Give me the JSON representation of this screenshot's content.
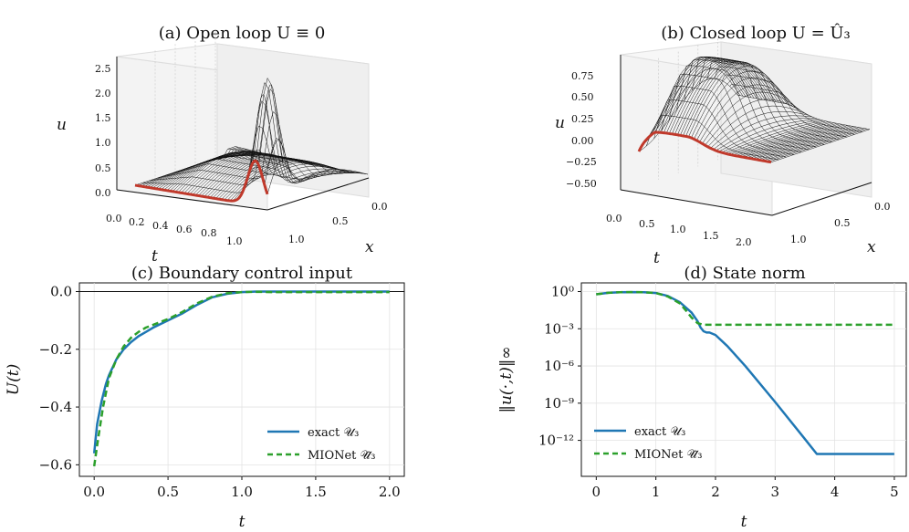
{
  "colors": {
    "exact": "#1f77b4",
    "mionet": "#2ca02c",
    "red_curve": "#c0392b",
    "mesh": "#111111"
  },
  "chart_data": [
    {
      "type": "surface",
      "title": "(a) Open loop  U ≡ 0",
      "xlabel": "t",
      "ylabel": "x",
      "zlabel": "u",
      "t_ticks": [
        "0.0",
        "0.2",
        "0.4",
        "0.6",
        "0.8",
        "1.0"
      ],
      "x_ticks": [
        "0.0",
        "0.5",
        "1.0"
      ],
      "z_ticks": [
        "0.0",
        "0.5",
        "1.0",
        "1.5",
        "2.0",
        "2.5"
      ],
      "tlim": [
        0,
        1.1
      ],
      "xlim": [
        0,
        1
      ],
      "zlim": [
        0,
        2.6
      ],
      "peak": {
        "t": 1.0,
        "x": 0.1,
        "u": 2.5
      }
    },
    {
      "type": "surface",
      "title": "(b) Closed loop  U = Û₃",
      "xlabel": "t",
      "ylabel": "x",
      "zlabel": "u",
      "t_ticks": [
        "0.0",
        "0.5",
        "1.0",
        "1.5",
        "2.0"
      ],
      "x_ticks": [
        "0.0",
        "0.5",
        "1.0"
      ],
      "z_ticks": [
        "−0.50",
        "−0.25",
        "0.00",
        "0.25",
        "0.50",
        "0.75"
      ],
      "tlim": [
        0,
        2.1
      ],
      "xlim": [
        0,
        1
      ],
      "zlim": [
        -0.55,
        0.85
      ]
    },
    {
      "type": "line",
      "title": "(c) Boundary control input",
      "xlabel": "t",
      "ylabel": "U(t)",
      "xlim": [
        -0.1,
        2.1
      ],
      "ylim": [
        -0.64,
        0.03
      ],
      "x_ticks": [
        0.0,
        0.5,
        1.0,
        1.5,
        2.0
      ],
      "x_tick_labels": [
        "0.0",
        "0.5",
        "1.0",
        "1.5",
        "2.0"
      ],
      "y_ticks": [
        0.0,
        -0.2,
        -0.4,
        -0.6
      ],
      "y_tick_labels": [
        "0.0",
        "−0.2",
        "−0.4",
        "−0.6"
      ],
      "grid": true,
      "legend": "lower-right",
      "series": [
        {
          "name": "exact 𝒰₃",
          "style": "solid",
          "x": [
            0.0,
            0.02,
            0.05,
            0.08,
            0.1,
            0.15,
            0.2,
            0.25,
            0.3,
            0.35,
            0.4,
            0.5,
            0.6,
            0.7,
            0.8,
            0.9,
            1.0,
            1.1,
            1.2,
            1.4,
            1.6,
            1.8,
            2.0
          ],
          "y": [
            -0.56,
            -0.46,
            -0.38,
            -0.32,
            -0.29,
            -0.235,
            -0.2,
            -0.175,
            -0.155,
            -0.14,
            -0.125,
            -0.1,
            -0.075,
            -0.045,
            -0.02,
            -0.008,
            -0.002,
            0.0,
            0.0,
            0.0,
            0.0,
            0.0,
            0.0
          ]
        },
        {
          "name": "MIONet 𝒰̂₃",
          "style": "dashed",
          "x": [
            0.0,
            0.03,
            0.06,
            0.1,
            0.15,
            0.2,
            0.25,
            0.3,
            0.35,
            0.4,
            0.5,
            0.6,
            0.7,
            0.8,
            0.9,
            1.0,
            1.1,
            1.2,
            1.4,
            1.6,
            1.8,
            2.0
          ],
          "y": [
            -0.605,
            -0.5,
            -0.4,
            -0.3,
            -0.235,
            -0.19,
            -0.16,
            -0.14,
            -0.125,
            -0.115,
            -0.095,
            -0.07,
            -0.04,
            -0.018,
            -0.006,
            -0.002,
            -0.001,
            -0.002,
            -0.002,
            -0.002,
            -0.002,
            -0.002
          ]
        }
      ]
    },
    {
      "type": "line",
      "title": "(d) State norm",
      "xlabel": "t",
      "ylabel": "‖u(·,t)‖∞",
      "yscale": "log",
      "xlim": [
        -0.25,
        5.2
      ],
      "ylim_log10": [
        -14.9,
        0.7
      ],
      "x_ticks": [
        0,
        1,
        2,
        3,
        4,
        5
      ],
      "x_tick_labels": [
        "0",
        "1",
        "2",
        "3",
        "4",
        "5"
      ],
      "y_ticks_log10": [
        0,
        -3,
        -6,
        -9,
        -12
      ],
      "y_tick_labels": [
        "10⁰",
        "10⁻³",
        "10⁻⁶",
        "10⁻⁹",
        "10⁻¹²"
      ],
      "grid": true,
      "legend": "lower-left",
      "series": [
        {
          "name": "exact 𝒰₃",
          "style": "solid",
          "x": [
            0,
            0.2,
            0.4,
            0.6,
            0.8,
            1.0,
            1.2,
            1.4,
            1.6,
            1.7,
            1.75,
            1.8,
            1.85,
            1.9,
            2.0,
            2.2,
            2.5,
            3.0,
            3.5,
            3.7,
            4.0,
            4.5,
            5.0
          ],
          "log10_y": [
            -0.22,
            -0.1,
            -0.05,
            -0.04,
            -0.06,
            -0.12,
            -0.35,
            -0.85,
            -1.7,
            -2.4,
            -2.9,
            -3.2,
            -3.3,
            -3.3,
            -3.5,
            -4.4,
            -6.0,
            -8.9,
            -11.9,
            -13.1,
            -13.1,
            -13.1,
            -13.1
          ]
        },
        {
          "name": "MIONet 𝒰̂₃",
          "style": "dashed",
          "x": [
            0,
            0.2,
            0.4,
            0.6,
            0.8,
            1.0,
            1.2,
            1.4,
            1.5,
            1.6,
            1.7,
            1.8,
            2.0,
            2.5,
            3.0,
            3.5,
            4.0,
            4.5,
            5.0
          ],
          "log10_y": [
            -0.22,
            -0.1,
            -0.05,
            -0.04,
            -0.06,
            -0.12,
            -0.4,
            -0.95,
            -1.5,
            -2.1,
            -2.55,
            -2.68,
            -2.68,
            -2.68,
            -2.68,
            -2.68,
            -2.68,
            -2.68,
            -2.68
          ]
        }
      ]
    }
  ]
}
